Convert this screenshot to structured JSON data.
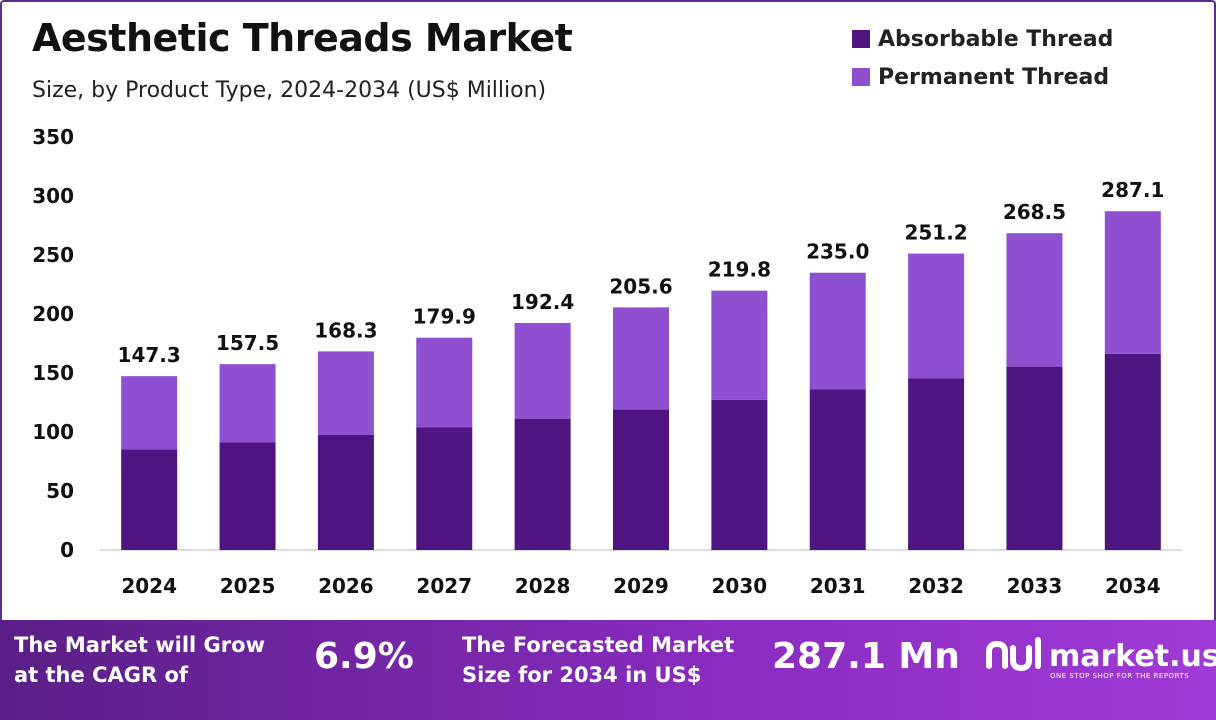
{
  "header": {
    "title": "Aesthetic Threads Market",
    "subtitle": "Size, by Product Type, 2024-2034 (US$ Million)"
  },
  "legend": [
    {
      "label": "Absorbable Thread",
      "color": "#4e1581"
    },
    {
      "label": "Permanent Thread",
      "color": "#8e4fd0"
    }
  ],
  "chart_data": {
    "type": "bar",
    "stacked": true,
    "categories": [
      "2024",
      "2025",
      "2026",
      "2027",
      "2028",
      "2029",
      "2030",
      "2031",
      "2032",
      "2033",
      "2034"
    ],
    "series": [
      {
        "name": "Absorbable Thread",
        "color": "#4e1581",
        "values": [
          85.3,
          91.1,
          97.5,
          104.1,
          111.3,
          119.0,
          127.2,
          136.0,
          145.4,
          155.4,
          166.2
        ]
      },
      {
        "name": "Permanent Thread",
        "color": "#8e4fd0",
        "values": [
          62.0,
          66.4,
          70.8,
          75.8,
          81.1,
          86.6,
          92.6,
          99.0,
          105.8,
          113.1,
          120.9
        ]
      }
    ],
    "totals": [
      "147.3",
      "157.5",
      "168.3",
      "179.9",
      "192.4",
      "205.6",
      "219.8",
      "235.0",
      "251.2",
      "268.5",
      "287.1"
    ],
    "yticks": [
      "0",
      "50",
      "100",
      "150",
      "200",
      "250",
      "300",
      "350"
    ],
    "ylim": [
      0,
      350
    ],
    "grid": false,
    "legend_position": "top-right"
  },
  "banner": {
    "cagr_text_line1": "The Market will Grow",
    "cagr_text_line2": "at the CAGR of",
    "cagr_value": "6.9%",
    "forecast_text_line1": "The Forecasted Market",
    "forecast_text_line2": "Size for 2034 in US$",
    "forecast_value": "287.1 Mn",
    "brand_name": "market.us",
    "brand_tagline": "ONE STOP SHOP FOR THE REPORTS"
  }
}
